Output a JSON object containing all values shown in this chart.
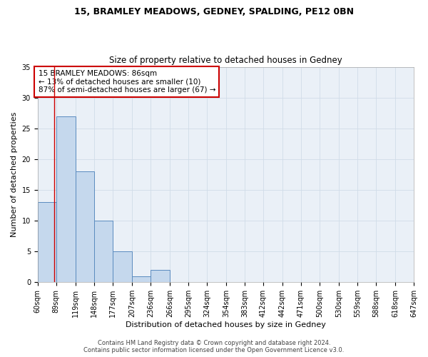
{
  "title1": "15, BRAMLEY MEADOWS, GEDNEY, SPALDING, PE12 0BN",
  "title2": "Size of property relative to detached houses in Gedney",
  "xlabel": "Distribution of detached houses by size in Gedney",
  "ylabel": "Number of detached properties",
  "bin_edges": [
    60,
    89,
    119,
    148,
    177,
    207,
    236,
    266,
    295,
    324,
    354,
    383,
    412,
    442,
    471,
    500,
    530,
    559,
    588,
    618,
    647
  ],
  "bar_heights": [
    13,
    27,
    18,
    10,
    5,
    1,
    2,
    0,
    0,
    0,
    0,
    0,
    0,
    0,
    0,
    0,
    0,
    0,
    0,
    0
  ],
  "bar_color": "#c5d8ed",
  "bar_edge_color": "#5a8bbf",
  "property_size": 86,
  "annotation_line1": "15 BRAMLEY MEADOWS: 86sqm",
  "annotation_line2": "← 13% of detached houses are smaller (10)",
  "annotation_line3": "87% of semi-detached houses are larger (67) →",
  "annotation_box_color": "#ffffff",
  "annotation_edge_color": "#cc0000",
  "vline_color": "#cc0000",
  "ylim": [
    0,
    35
  ],
  "yticks": [
    0,
    5,
    10,
    15,
    20,
    25,
    30,
    35
  ],
  "grid_color": "#d0dce8",
  "background_color": "#eaf0f7",
  "footer1": "Contains HM Land Registry data © Crown copyright and database right 2024.",
  "footer2": "Contains public sector information licensed under the Open Government Licence v3.0.",
  "title1_fontsize": 9,
  "title2_fontsize": 8.5,
  "xlabel_fontsize": 8,
  "ylabel_fontsize": 8,
  "tick_fontsize": 7,
  "annotation_fontsize": 7.5,
  "footer_fontsize": 6
}
